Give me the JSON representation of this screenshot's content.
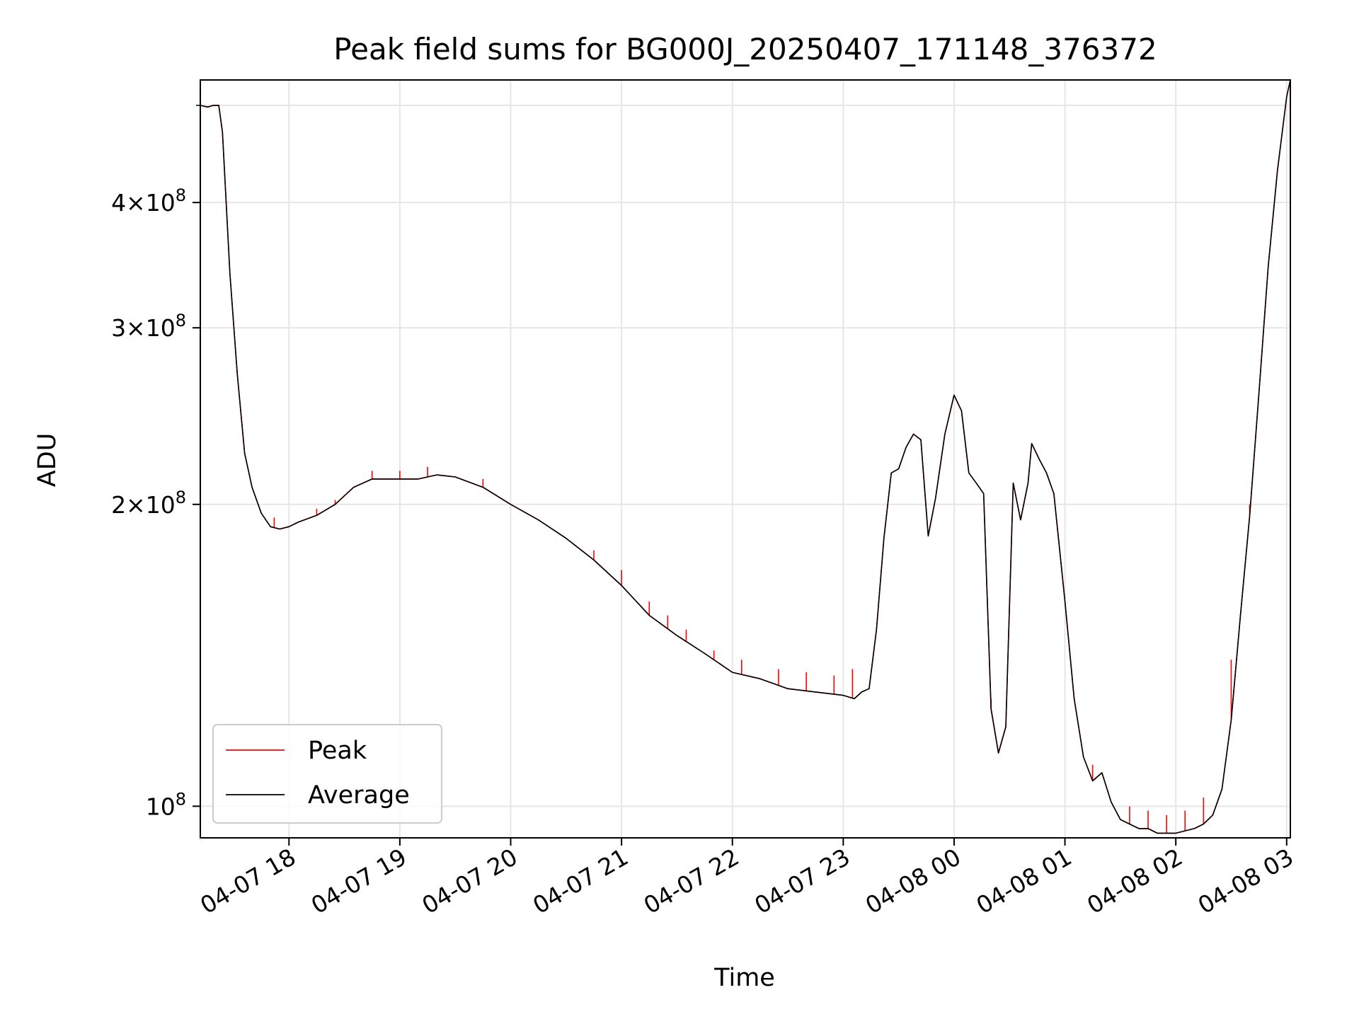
{
  "chart_data": {
    "type": "line",
    "title": "Peak field sums for BG000J_20250407_171148_376372",
    "xlabel": "Time",
    "ylabel": "ADU",
    "yscale": "log",
    "ylim": [
      93000000,
      530000000
    ],
    "xlim": [
      "2025-04-07 17:12",
      "2025-04-08 03:02"
    ],
    "grid": true,
    "legend": {
      "location": "lower-left",
      "entries": [
        "Peak",
        "Average"
      ]
    },
    "x_ticks": [
      {
        "value": "2025-04-07 18:00",
        "label": "04-07 18"
      },
      {
        "value": "2025-04-07 19:00",
        "label": "04-07 19"
      },
      {
        "value": "2025-04-07 20:00",
        "label": "04-07 20"
      },
      {
        "value": "2025-04-07 21:00",
        "label": "04-07 21"
      },
      {
        "value": "2025-04-07 22:00",
        "label": "04-07 22"
      },
      {
        "value": "2025-04-07 23:00",
        "label": "04-07 23"
      },
      {
        "value": "2025-04-08 00:00",
        "label": "04-08 00"
      },
      {
        "value": "2025-04-08 01:00",
        "label": "04-08 01"
      },
      {
        "value": "2025-04-08 02:00",
        "label": "04-08 02"
      },
      {
        "value": "2025-04-08 03:00",
        "label": "04-08 03"
      }
    ],
    "y_ticks": [
      {
        "value": 100000000,
        "mantissa": "",
        "exp": "8"
      },
      {
        "value": 200000000,
        "mantissa": "2",
        "exp": "8"
      },
      {
        "value": 300000000,
        "mantissa": "3",
        "exp": "8"
      },
      {
        "value": 400000000,
        "mantissa": "4",
        "exp": "8"
      }
    ],
    "y_minor_ticks": [
      500000000
    ],
    "series": [
      {
        "name": "Average",
        "color": "#000000",
        "x": [
          "2025-04-07 17:12",
          "2025-04-07 17:16",
          "2025-04-07 17:19",
          "2025-04-07 17:22",
          "2025-04-07 17:24",
          "2025-04-07 17:28",
          "2025-04-07 17:32",
          "2025-04-07 17:36",
          "2025-04-07 17:40",
          "2025-04-07 17:45",
          "2025-04-07 17:50",
          "2025-04-07 17:55",
          "2025-04-07 18:00",
          "2025-04-07 18:05",
          "2025-04-07 18:15",
          "2025-04-07 18:25",
          "2025-04-07 18:35",
          "2025-04-07 18:45",
          "2025-04-07 19:00",
          "2025-04-07 19:10",
          "2025-04-07 19:20",
          "2025-04-07 19:30",
          "2025-04-07 19:45",
          "2025-04-07 20:00",
          "2025-04-07 20:15",
          "2025-04-07 20:30",
          "2025-04-07 20:45",
          "2025-04-07 21:00",
          "2025-04-07 21:15",
          "2025-04-07 21:30",
          "2025-04-07 21:45",
          "2025-04-07 22:00",
          "2025-04-07 22:15",
          "2025-04-07 22:30",
          "2025-04-07 22:45",
          "2025-04-07 23:00",
          "2025-04-07 23:06",
          "2025-04-07 23:10",
          "2025-04-07 23:14",
          "2025-04-07 23:18",
          "2025-04-07 23:22",
          "2025-04-07 23:26",
          "2025-04-07 23:30",
          "2025-04-07 23:34",
          "2025-04-07 23:38",
          "2025-04-07 23:42",
          "2025-04-07 23:46",
          "2025-04-07 23:50",
          "2025-04-07 23:55",
          "2025-04-08 00:00",
          "2025-04-08 00:04",
          "2025-04-08 00:08",
          "2025-04-08 00:12",
          "2025-04-08 00:16",
          "2025-04-08 00:20",
          "2025-04-08 00:24",
          "2025-04-08 00:28",
          "2025-04-08 00:32",
          "2025-04-08 00:36",
          "2025-04-08 00:40",
          "2025-04-08 00:42",
          "2025-04-08 00:46",
          "2025-04-08 00:50",
          "2025-04-08 00:54",
          "2025-04-08 01:00",
          "2025-04-08 01:05",
          "2025-04-08 01:10",
          "2025-04-08 01:15",
          "2025-04-08 01:20",
          "2025-04-08 01:25",
          "2025-04-08 01:30",
          "2025-04-08 01:35",
          "2025-04-08 01:40",
          "2025-04-08 01:45",
          "2025-04-08 01:50",
          "2025-04-08 01:55",
          "2025-04-08 02:00",
          "2025-04-08 02:10",
          "2025-04-08 02:15",
          "2025-04-08 02:20",
          "2025-04-08 02:25",
          "2025-04-08 02:30",
          "2025-04-08 02:35",
          "2025-04-08 02:40",
          "2025-04-08 02:45",
          "2025-04-08 02:50",
          "2025-04-08 02:55",
          "2025-04-08 03:00",
          "2025-04-08 03:02"
        ],
        "values": [
          500000000,
          498000000,
          500000000,
          500000000,
          470000000,
          340000000,
          270000000,
          225000000,
          208000000,
          196000000,
          190000000,
          189000000,
          190000000,
          192000000,
          195000000,
          200000000,
          208000000,
          212000000,
          212000000,
          212000000,
          214000000,
          213000000,
          208000000,
          200000000,
          193000000,
          185000000,
          176000000,
          166000000,
          155000000,
          148000000,
          142000000,
          136000000,
          134000000,
          131000000,
          130000000,
          129000000,
          128000000,
          130000000,
          131000000,
          150000000,
          185000000,
          215000000,
          217000000,
          228000000,
          235000000,
          232000000,
          186000000,
          203000000,
          235000000,
          257000000,
          248000000,
          215000000,
          210000000,
          205000000,
          125000000,
          113000000,
          120000000,
          210000000,
          193000000,
          210000000,
          230000000,
          222000000,
          215000000,
          205000000,
          160000000,
          128000000,
          112000000,
          106000000,
          108000000,
          101000000,
          97000000,
          96000000,
          95000000,
          95000000,
          94000000,
          94000000,
          94000000,
          95000000,
          96000000,
          98000000,
          104000000,
          122000000,
          155000000,
          195000000,
          258000000,
          345000000,
          430000000,
          510000000,
          530000000
        ]
      },
      {
        "name": "Peak",
        "color": "#ff0000",
        "spikes": [
          {
            "x": "2025-04-07 17:52",
            "value": 194000000
          },
          {
            "x": "2025-04-07 18:15",
            "value": 198000000
          },
          {
            "x": "2025-04-07 18:25",
            "value": 202000000
          },
          {
            "x": "2025-04-07 18:45",
            "value": 216000000
          },
          {
            "x": "2025-04-07 19:00",
            "value": 216000000
          },
          {
            "x": "2025-04-07 19:15",
            "value": 218000000
          },
          {
            "x": "2025-04-07 19:45",
            "value": 212000000
          },
          {
            "x": "2025-04-07 20:45",
            "value": 180000000
          },
          {
            "x": "2025-04-07 21:00",
            "value": 172000000
          },
          {
            "x": "2025-04-07 21:15",
            "value": 160000000
          },
          {
            "x": "2025-04-07 21:25",
            "value": 155000000
          },
          {
            "x": "2025-04-07 21:35",
            "value": 150000000
          },
          {
            "x": "2025-04-07 21:50",
            "value": 143000000
          },
          {
            "x": "2025-04-07 22:05",
            "value": 140000000
          },
          {
            "x": "2025-04-07 22:25",
            "value": 137000000
          },
          {
            "x": "2025-04-07 22:40",
            "value": 136000000
          },
          {
            "x": "2025-04-07 22:55",
            "value": 135000000
          },
          {
            "x": "2025-04-07 23:05",
            "value": 137000000
          },
          {
            "x": "2025-04-08 00:20",
            "value": 128000000
          },
          {
            "x": "2025-04-08 01:15",
            "value": 110000000
          },
          {
            "x": "2025-04-08 01:35",
            "value": 100000000
          },
          {
            "x": "2025-04-08 01:45",
            "value": 99000000
          },
          {
            "x": "2025-04-08 01:55",
            "value": 98000000
          },
          {
            "x": "2025-04-08 02:05",
            "value": 99000000
          },
          {
            "x": "2025-04-08 02:15",
            "value": 102000000
          },
          {
            "x": "2025-04-08 02:30",
            "value": 140000000
          },
          {
            "x": "2025-04-08 02:40",
            "value": 200000000
          }
        ]
      }
    ]
  }
}
